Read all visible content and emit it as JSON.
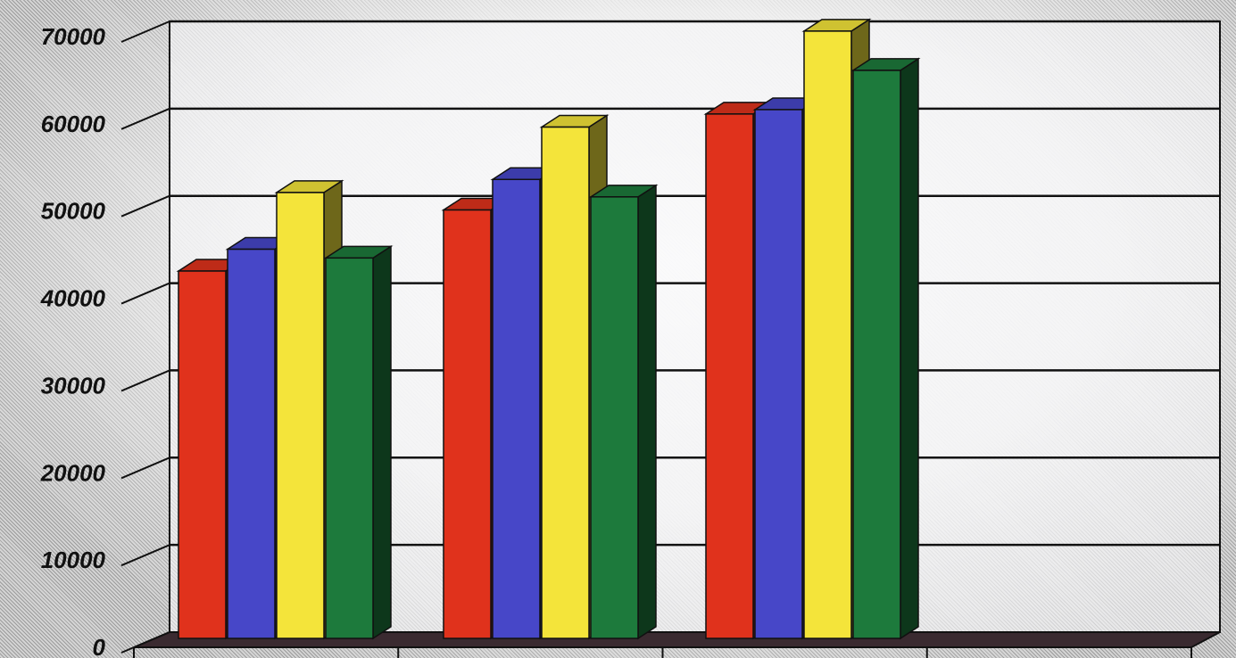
{
  "chart_data": {
    "type": "bar",
    "title": "",
    "xlabel": "",
    "ylabel": "",
    "ylim": [
      0,
      70000
    ],
    "y_ticks": [
      "0",
      "10000",
      "20000",
      "30000",
      "40000",
      "50000",
      "60000",
      "70000"
    ],
    "categories": [
      "",
      "",
      "",
      ""
    ],
    "series": [
      {
        "color": "#e0321c",
        "values": [
          42000,
          49000,
          60000,
          null
        ]
      },
      {
        "color": "#4747c8",
        "values": [
          44500,
          52500,
          60500,
          null
        ]
      },
      {
        "color": "#f4e43a",
        "values": [
          51000,
          58500,
          69500,
          null
        ]
      },
      {
        "color": "#1d7a3c",
        "values": [
          43500,
          50500,
          65000,
          null
        ]
      }
    ],
    "grid": true,
    "style": "3d"
  }
}
